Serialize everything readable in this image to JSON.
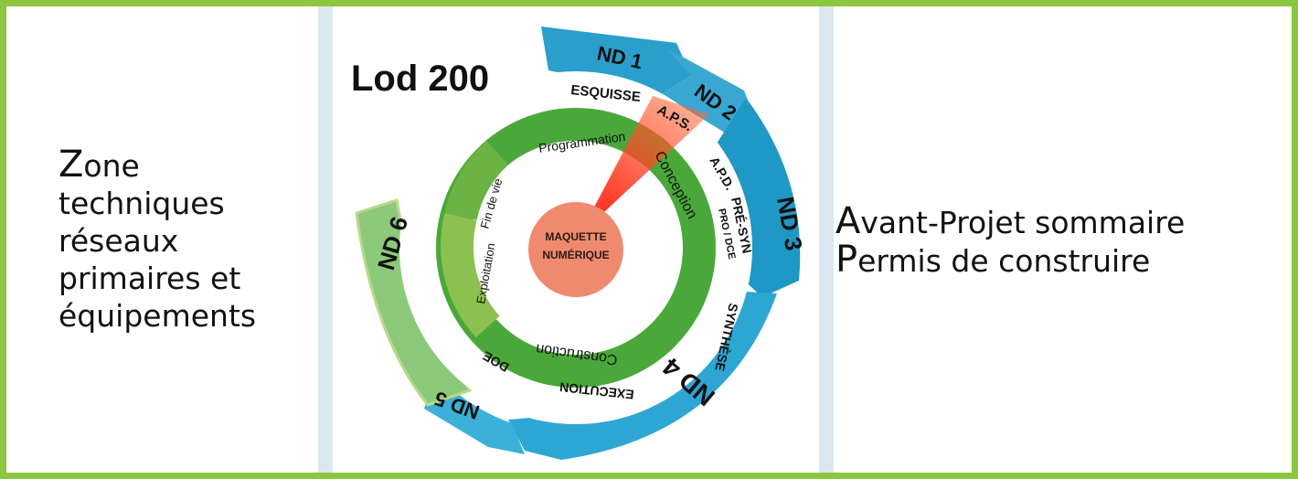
{
  "left_text": {
    "first_letter": "Z",
    "rest_first_line": "one",
    "lines": [
      "techniques",
      "réseaux",
      "primaires et",
      "équipements"
    ]
  },
  "right_text": {
    "line1": {
      "first_letter": "A",
      "rest": "vant-Projet sommaire"
    },
    "line2": {
      "first_letter": "P",
      "rest": "ermis de construire"
    }
  },
  "diagram": {
    "lod_label": "Lod 200",
    "center": {
      "line1": "MAQUETTE",
      "line2": "NUMÉRIQUE"
    },
    "levels": [
      "ND 1",
      "ND 2",
      "ND 3",
      "ND 4",
      "ND 5",
      "ND 6"
    ],
    "phases": [
      "ESQUISSE",
      "A.P.S.",
      "A.P.D.",
      "PRÉ-SYN",
      "PRO / DCE",
      "SYNTHÈSE",
      "EXECUTION",
      "DOE"
    ],
    "cycle": [
      "Programmation",
      "Conception",
      "Construction",
      "Exploitation",
      "Fin de vie"
    ],
    "colors": {
      "border": "#8dc63f",
      "blue": "#2fa3cf",
      "green": "#4aa83a",
      "light_green": "#8cc152",
      "center": "#f08a6e",
      "highlight": "#e8231b"
    }
  }
}
